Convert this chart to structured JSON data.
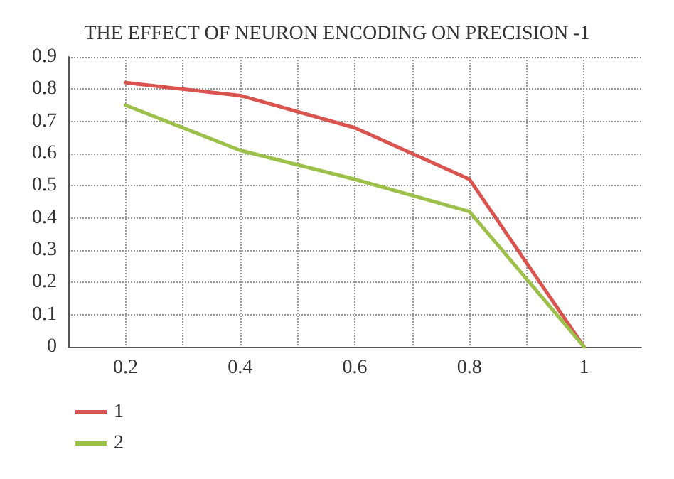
{
  "chart_data": {
    "type": "line",
    "title": "THE EFFECT OF NEURON ENCODING ON PRECISION -1",
    "x": [
      0.2,
      0.4,
      0.6,
      0.8,
      1
    ],
    "series": [
      {
        "name": "1",
        "color": "#d9534f",
        "values": [
          0.82,
          0.78,
          0.68,
          0.52,
          0
        ]
      },
      {
        "name": "2",
        "color": "#9cc04a",
        "values": [
          0.75,
          0.61,
          0.52,
          0.42,
          0
        ]
      }
    ],
    "xlim": [
      0.1,
      1.1
    ],
    "xticks": [
      0.2,
      {
        "value": 0.3,
        "label": null
      },
      0.4,
      {
        "value": 0.5,
        "label": null
      },
      0.6,
      {
        "value": 0.7,
        "label": null
      },
      0.8,
      {
        "value": 0.9,
        "label": null
      },
      1
    ],
    "ylim": [
      0,
      0.9
    ],
    "yticks": [
      0,
      0.1,
      0.2,
      0.3,
      0.4,
      0.5,
      0.6,
      0.7,
      0.8,
      0.9
    ],
    "grid": true,
    "legend": "bottom left",
    "marker": "none",
    "line_style": "solid"
  }
}
